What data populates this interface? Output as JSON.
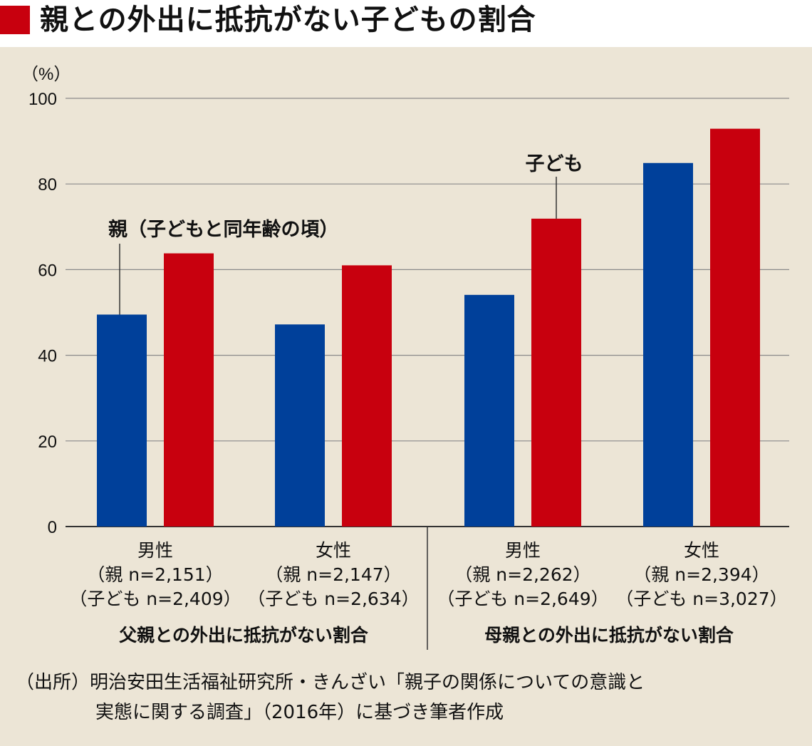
{
  "title": "親との外出に抵抗がない子どもの割合",
  "colors": {
    "parent": "#00409a",
    "child": "#c8000e",
    "title_square": "#c8000e",
    "background": "#ece5d6"
  },
  "chart_data": {
    "type": "bar",
    "title": "親との外出に抵抗がない子どもの割合",
    "ylabel": "（%）",
    "ylim": [
      0,
      100
    ],
    "yticks": [
      0,
      20,
      40,
      60,
      80,
      100
    ],
    "grid": true,
    "categories": [
      {
        "label": "男性",
        "n_parent": "（親 n=2,151）",
        "n_child": "（子ども n=2,409）"
      },
      {
        "label": "女性",
        "n_parent": "（親 n=2,147）",
        "n_child": "（子ども n=2,634）"
      },
      {
        "label": "男性",
        "n_parent": "（親 n=2,262）",
        "n_child": "（子ども n=2,649）"
      },
      {
        "label": "女性",
        "n_parent": "（親 n=2,394）",
        "n_child": "（子ども n=3,027）"
      }
    ],
    "groups": [
      "父親との外出に抵抗がない割合",
      "母親との外出に抵抗がない割合"
    ],
    "series": [
      {
        "name": "親（子どもと同年齢の頃）",
        "values": [
          49.5,
          47.2,
          54.1,
          84.9
        ]
      },
      {
        "name": "子ども",
        "values": [
          63.8,
          61.0,
          71.9,
          92.9
        ]
      }
    ],
    "annotations": [
      "親（子どもと同年齢の頃）",
      "子ども"
    ]
  },
  "source": {
    "line1": "（出所）明治安田生活福祉研究所・きんざい「親子の関係についての意識と",
    "line2": "実態に関する調査」（2016年）に基づき筆者作成"
  }
}
